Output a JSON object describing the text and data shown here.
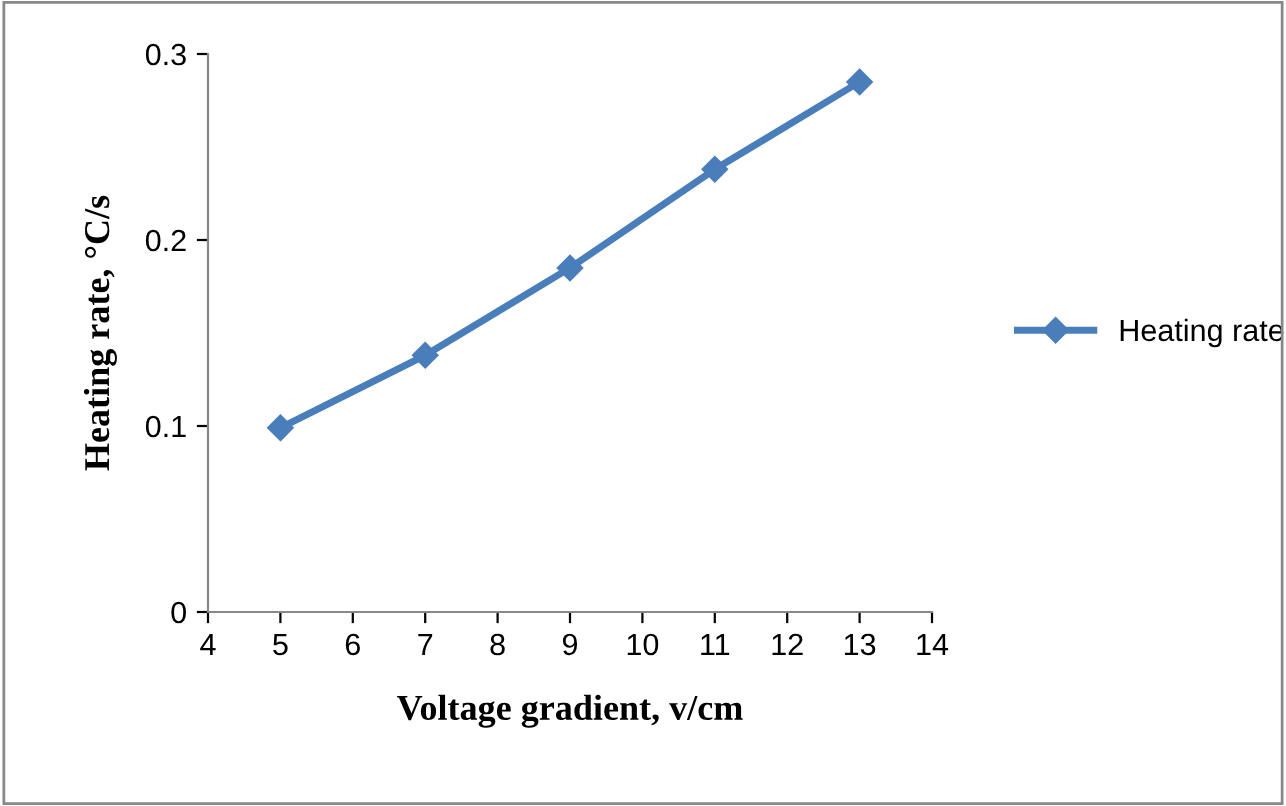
{
  "chart_data": {
    "type": "line",
    "xlabel": "Voltage gradient, v/cm",
    "ylabel": "Heating rate, °C/s",
    "x": [
      5,
      7,
      9,
      11,
      13
    ],
    "series": [
      {
        "name": "Heating rate",
        "color": "#4a7ebb",
        "values": [
          0.099,
          0.138,
          0.185,
          0.238,
          0.285
        ]
      }
    ],
    "xlim": [
      4,
      14
    ],
    "xticks": [
      4,
      5,
      6,
      7,
      8,
      9,
      10,
      11,
      12,
      13,
      14
    ],
    "ylim": [
      0,
      0.3
    ],
    "yticks": [
      0,
      0.1,
      0.2,
      0.3
    ],
    "marker": "diamond",
    "line_style": "solid",
    "grid": false,
    "legend": "right"
  }
}
